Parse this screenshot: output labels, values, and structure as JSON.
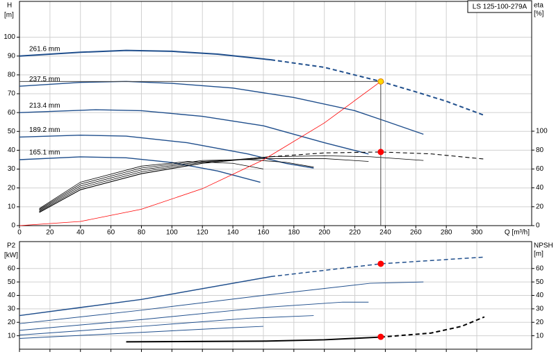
{
  "chart_data": [
    {
      "type": "line",
      "title": "LS 125-100-279A",
      "ylabel": "H",
      "yunit": "[m]",
      "y2label": "eta",
      "y2unit": "[%]",
      "xlabel": "Q [m³/h]",
      "xlim": [
        0,
        336
      ],
      "xticks": [
        0,
        20,
        40,
        60,
        80,
        100,
        120,
        140,
        160,
        180,
        200,
        220,
        240,
        260,
        280,
        300
      ],
      "ylim": [
        0,
        119
      ],
      "yticks": [
        0,
        10,
        20,
        30,
        40,
        50,
        60,
        70,
        80,
        90,
        100
      ],
      "y2lim": [
        0,
        237.5
      ],
      "y2ticks": [
        0,
        20,
        40,
        60,
        80,
        100
      ],
      "grid": true,
      "xtick_labels": true,
      "series": [
        {
          "name": "261.6 mm",
          "color": "#1f4e8c",
          "width": 2,
          "dash_from": 165,
          "x": [
            0,
            40,
            70,
            100,
            130,
            165,
            200,
            237,
            260,
            280,
            305
          ],
          "values": [
            90,
            92,
            93,
            92.5,
            91,
            88,
            84,
            76.5,
            71,
            66,
            58.5
          ]
        },
        {
          "name": "237.5 mm",
          "color": "#1f4e8c",
          "width": 1.4,
          "x": [
            0,
            40,
            70,
            100,
            140,
            180,
            220,
            240,
            265
          ],
          "values": [
            74,
            76,
            76.5,
            75.5,
            73,
            68,
            61,
            55.5,
            48.5
          ]
        },
        {
          "name": "213.4 mm",
          "color": "#1f4e8c",
          "width": 1.4,
          "x": [
            0,
            50,
            80,
            120,
            160,
            200,
            229
          ],
          "values": [
            60,
            61.5,
            61,
            58,
            53,
            44,
            38
          ]
        },
        {
          "name": "189.2 mm",
          "color": "#1f4e8c",
          "width": 1.4,
          "x": [
            0,
            40,
            70,
            110,
            150,
            175,
            193
          ],
          "values": [
            47,
            48,
            47.5,
            44,
            38,
            33,
            30.5
          ]
        },
        {
          "name": "165.1 mm",
          "color": "#1f4e8c",
          "width": 1.4,
          "x": [
            0,
            40,
            70,
            100,
            130,
            158
          ],
          "values": [
            35,
            36.5,
            36,
            33.5,
            29,
            23
          ]
        },
        {
          "color": "#000000",
          "width": 1.1,
          "axis": "y2",
          "dash_from": 165,
          "x": [
            13,
            40,
            80,
            120,
            165,
            200,
            237,
            270,
            305
          ],
          "values": [
            14,
            38,
            55,
            66,
            73,
            77,
            78,
            76,
            70.5
          ]
        },
        {
          "color": "#000000",
          "width": 0.8,
          "axis": "y2",
          "x": [
            13,
            40,
            80,
            120,
            165,
            200,
            230,
            265
          ],
          "values": [
            15,
            40,
            57,
            67,
            73,
            74,
            73,
            69
          ]
        },
        {
          "color": "#000000",
          "width": 0.8,
          "axis": "y2",
          "x": [
            13,
            40,
            80,
            120,
            160,
            200,
            229
          ],
          "values": [
            16,
            42,
            59,
            68,
            71,
            71,
            68
          ]
        },
        {
          "color": "#000000",
          "width": 0.8,
          "axis": "y2",
          "x": [
            13,
            40,
            80,
            120,
            150,
            175,
            193
          ],
          "values": [
            17,
            44,
            61,
            69,
            70,
            67,
            62
          ]
        },
        {
          "color": "#000000",
          "width": 0.8,
          "axis": "y2",
          "x": [
            13,
            40,
            80,
            110,
            140,
            160
          ],
          "values": [
            18,
            46,
            63,
            68,
            66,
            60
          ]
        },
        {
          "color": "#ff0000",
          "width": 0.8,
          "x": [
            0,
            40,
            80,
            120,
            160,
            200,
            237
          ],
          "values": [
            0,
            2.2,
            8.7,
            19.6,
            34.9,
            54.5,
            76.5
          ]
        }
      ],
      "points": [
        {
          "x": 237,
          "value": 76.5,
          "color": "#ffd700",
          "crosshair": true
        },
        {
          "x": 237,
          "value": 78,
          "axis": "y2",
          "color": "#ff0000"
        }
      ]
    },
    {
      "type": "line",
      "ylabel": "P2",
      "yunit": "[kW]",
      "y2label": "NPSH",
      "y2unit": "[m]",
      "xlim": [
        0,
        336
      ],
      "xticks": [
        0,
        20,
        40,
        60,
        80,
        100,
        120,
        140,
        160,
        180,
        200,
        220,
        240,
        260,
        280,
        300
      ],
      "ylim": [
        0,
        80
      ],
      "yticks": [
        10,
        20,
        30,
        40,
        50,
        60
      ],
      "y2lim": [
        0,
        80
      ],
      "y2ticks": [
        10,
        20,
        30,
        40,
        50,
        60
      ],
      "grid": true,
      "xtick_labels": false,
      "series": [
        {
          "color": "#1f4e8c",
          "width": 1.5,
          "dash_from": 165,
          "x": [
            0,
            80,
            165,
            237,
            305
          ],
          "values": [
            25,
            37,
            54,
            63.5,
            68.5
          ]
        },
        {
          "color": "#1f4e8c",
          "width": 1,
          "x": [
            0,
            80,
            160,
            230,
            265
          ],
          "values": [
            19,
            29,
            40,
            49,
            50
          ]
        },
        {
          "color": "#1f4e8c",
          "width": 1,
          "x": [
            0,
            80,
            160,
            212,
            229
          ],
          "values": [
            14,
            22,
            31,
            35,
            35
          ]
        },
        {
          "color": "#1f4e8c",
          "width": 1,
          "x": [
            0,
            80,
            150,
            193
          ],
          "values": [
            10.5,
            17,
            23,
            25
          ]
        },
        {
          "color": "#1f4e8c",
          "width": 1,
          "x": [
            0,
            80,
            140,
            160
          ],
          "values": [
            8,
            12.5,
            16,
            17
          ]
        },
        {
          "color": "#000000",
          "width": 2,
          "axis": "y2",
          "dash_from": 237,
          "x": [
            70,
            160,
            200,
            237,
            270,
            290,
            305
          ],
          "values": [
            5.5,
            6,
            7,
            9,
            12,
            17,
            24
          ]
        }
      ],
      "points": [
        {
          "x": 237,
          "value": 63.5,
          "color": "#ff0000"
        },
        {
          "x": 237,
          "value": 9.2,
          "axis": "y2",
          "color": "#ff0000"
        }
      ]
    }
  ]
}
